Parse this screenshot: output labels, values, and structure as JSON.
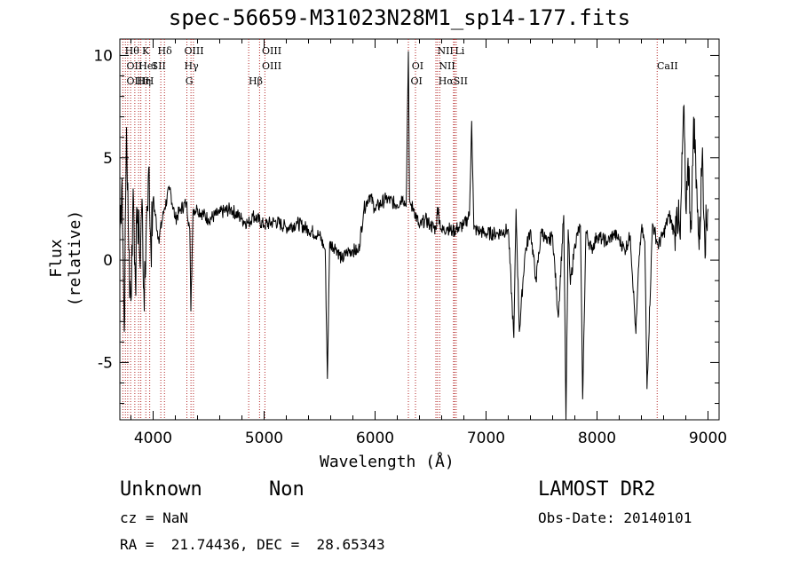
{
  "chart_data": {
    "type": "line",
    "title": "spec-56659-M31023N28M1_sp14-177.fits",
    "xlabel": "Wavelength (Å)",
    "ylabel": "Flux (relative)",
    "xlim": [
      3700,
      9100
    ],
    "ylim": [
      -7.8,
      10.8
    ],
    "xticks": [
      4000,
      5000,
      6000,
      7000,
      8000,
      9000
    ],
    "yticks": [
      -5,
      0,
      5,
      10
    ],
    "grid": false,
    "series": [
      {
        "color": "#000000",
        "x": [
          3700,
          3720,
          3740,
          3760,
          3780,
          3800,
          3820,
          3840,
          3860,
          3880,
          3900,
          3920,
          3940,
          3960,
          3980,
          4000,
          4050,
          4100,
          4150,
          4200,
          4250,
          4300,
          4330,
          4340,
          4360,
          4400,
          4500,
          4600,
          4700,
          4800,
          4860,
          4900,
          5000,
          5100,
          5200,
          5300,
          5400,
          5500,
          5550,
          5570,
          5590,
          5650,
          5700,
          5750,
          5800,
          5850,
          5900,
          5950,
          6000,
          6100,
          6200,
          6250,
          6280,
          6300,
          6310,
          6320,
          6350,
          6400,
          6450,
          6500,
          6550,
          6562,
          6600,
          6650,
          6700,
          6750,
          6800,
          6850,
          6870,
          6890,
          6950,
          7000,
          7100,
          7200,
          7250,
          7270,
          7300,
          7350,
          7400,
          7450,
          7500,
          7550,
          7600,
          7650,
          7700,
          7720,
          7740,
          7760,
          7800,
          7850,
          7870,
          7900,
          7950,
          8000,
          8050,
          8100,
          8150,
          8200,
          8250,
          8300,
          8350,
          8380,
          8400,
          8430,
          8450,
          8500,
          8550,
          8600,
          8650,
          8700,
          8720,
          8750,
          8780,
          8800,
          8820,
          8850,
          8870,
          8900,
          8920,
          8950,
          8970,
          9000
        ],
        "y": [
          1.5,
          4.0,
          -3.5,
          6.5,
          0.5,
          -2.0,
          3.5,
          -1.0,
          2.5,
          0.0,
          3.0,
          -2.5,
          2.0,
          4.5,
          0.5,
          3.0,
          1.0,
          2.5,
          3.5,
          2.0,
          2.5,
          2.8,
          1.5,
          -2.5,
          2.5,
          2.5,
          2.0,
          2.3,
          2.5,
          2.0,
          1.8,
          2.2,
          1.7,
          1.9,
          1.6,
          1.8,
          1.5,
          1.2,
          0.5,
          -5.8,
          0.8,
          0.6,
          0.0,
          0.4,
          0.5,
          0.4,
          2.5,
          3.2,
          2.5,
          3.0,
          2.7,
          3.1,
          2.6,
          10.2,
          3.0,
          2.7,
          2.5,
          1.6,
          2.0,
          1.7,
          1.5,
          2.6,
          1.4,
          1.6,
          1.4,
          1.6,
          1.7,
          2.2,
          6.8,
          1.5,
          1.4,
          1.3,
          1.3,
          1.5,
          -3.8,
          2.5,
          -3.5,
          0.3,
          1.5,
          -1.0,
          1.5,
          0.8,
          1.2,
          -2.8,
          2.2,
          -7.8,
          1.5,
          -1.2,
          0.8,
          1.7,
          -6.8,
          1.4,
          0.5,
          1.2,
          1.0,
          0.9,
          1.3,
          1.0,
          0.5,
          1.2,
          -3.6,
          0.2,
          1.5,
          0.9,
          -6.3,
          1.8,
          0.7,
          1.3,
          2.2,
          1.3,
          2.6,
          1.0,
          7.5,
          2.5,
          5.0,
          1.5,
          7.0,
          3.5,
          0.5,
          5.5,
          1.0,
          2.5
        ]
      }
    ],
    "line_markers": [
      {
        "wave": 3727,
        "label": "OII"
      },
      {
        "wave": 3750,
        "label": "Hθ"
      },
      {
        "wave": 3771,
        "label": "Hη"
      },
      {
        "wave": 3797,
        "label": "Hθ"
      },
      {
        "wave": 3835,
        "label": "Hη"
      },
      {
        "wave": 3869,
        "label": "NeIII"
      },
      {
        "wave": 3889,
        "label": "HeI"
      },
      {
        "wave": 3934,
        "label": "K"
      },
      {
        "wave": 3969,
        "label": "H"
      },
      {
        "wave": 4069,
        "label": "SII"
      },
      {
        "wave": 4102,
        "label": "Hδ"
      },
      {
        "wave": 4304,
        "label": "G"
      },
      {
        "wave": 4341,
        "label": "Hγ"
      },
      {
        "wave": 4363,
        "label": "OIII"
      },
      {
        "wave": 4861,
        "label": "Hβ"
      },
      {
        "wave": 4959,
        "label": "OIII"
      },
      {
        "wave": 5007,
        "label": "OIII"
      },
      {
        "wave": 6300,
        "label": "OI"
      },
      {
        "wave": 6364,
        "label": "OI"
      },
      {
        "wave": 6548,
        "label": "NII"
      },
      {
        "wave": 6563,
        "label": "Hα"
      },
      {
        "wave": 6583,
        "label": "NII"
      },
      {
        "wave": 6707,
        "label": "Li"
      },
      {
        "wave": 6716,
        "label": "SII"
      },
      {
        "wave": 6731,
        "label": "SII"
      },
      {
        "wave": 8542,
        "label": "CaII"
      }
    ],
    "line_labels": [
      {
        "wave": 3745,
        "row": 0,
        "text": "Hθ"
      },
      {
        "wave": 3900,
        "row": 0,
        "text": "K"
      },
      {
        "wave": 4040,
        "row": 0,
        "text": "Hδ"
      },
      {
        "wave": 4280,
        "row": 0,
        "text": "OIII"
      },
      {
        "wave": 4980,
        "row": 0,
        "text": "OIII"
      },
      {
        "wave": 6560,
        "row": 0,
        "text": "NII"
      },
      {
        "wave": 6720,
        "row": 0,
        "text": "Li"
      },
      {
        "wave": 3760,
        "row": 1,
        "text": "OII"
      },
      {
        "wave": 3870,
        "row": 1,
        "text": "HeI"
      },
      {
        "wave": 3985,
        "row": 1,
        "text": "SII"
      },
      {
        "wave": 4280,
        "row": 1,
        "text": "Hγ"
      },
      {
        "wave": 4980,
        "row": 1,
        "text": "OIII"
      },
      {
        "wave": 6330,
        "row": 1,
        "text": "OI"
      },
      {
        "wave": 6575,
        "row": 1,
        "text": "NII"
      },
      {
        "wave": 8540,
        "row": 1,
        "text": "CaII"
      },
      {
        "wave": 3760,
        "row": 2,
        "text": "OIII"
      },
      {
        "wave": 3850,
        "row": 2,
        "text": "Hη"
      },
      {
        "wave": 3930,
        "row": 2,
        "text": "H"
      },
      {
        "wave": 4290,
        "row": 2,
        "text": "G"
      },
      {
        "wave": 4860,
        "row": 2,
        "text": "Hβ"
      },
      {
        "wave": 6320,
        "row": 2,
        "text": "OI"
      },
      {
        "wave": 6570,
        "row": 2,
        "text": "HαSII"
      }
    ]
  },
  "info": {
    "object_class": "Unknown",
    "subclass": "Non",
    "survey": "LAMOST DR2",
    "redshift": "cz = NaN",
    "obs_date": "Obs-Date: 20140101",
    "coords": "RA =  21.74436, DEC =  28.65343"
  },
  "colors": {
    "marker_line": "#b22222",
    "axes": "#000000"
  }
}
